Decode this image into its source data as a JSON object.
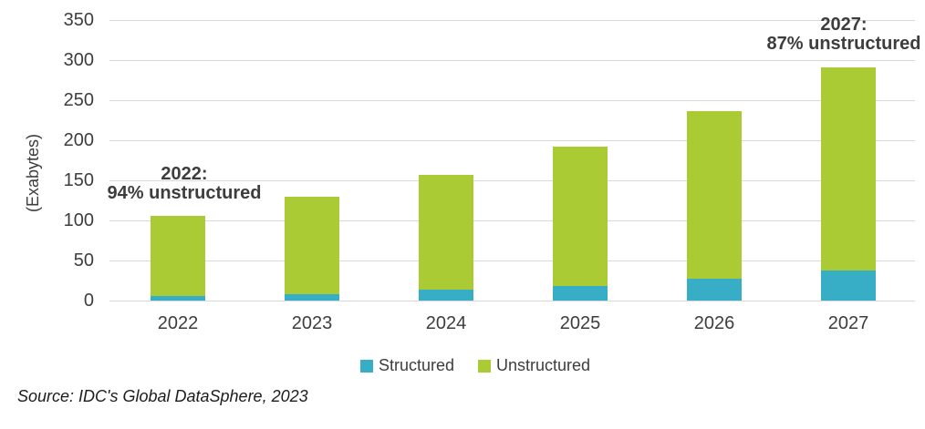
{
  "chart_data": {
    "type": "bar",
    "stacked": true,
    "title": "",
    "xlabel": "",
    "ylabel": "(Exabytes)",
    "categories": [
      "2022",
      "2023",
      "2024",
      "2025",
      "2026",
      "2027"
    ],
    "series": [
      {
        "name": "Structured",
        "color": "#38adc6",
        "values": [
          6,
          8,
          14,
          18,
          27,
          38
        ]
      },
      {
        "name": "Unstructured",
        "color": "#abcb35",
        "values": [
          100,
          121,
          143,
          174,
          209,
          253
        ]
      }
    ],
    "totals": [
      106,
      129,
      157,
      192,
      236,
      291
    ],
    "ylim": [
      0,
      350
    ],
    "yticks": [
      0,
      50,
      100,
      150,
      200,
      250,
      300,
      350
    ],
    "grid": true,
    "legend_position": "bottom",
    "annotations": [
      {
        "lines": [
          "2022:",
          "94% unstructured"
        ],
        "anchor": "2022"
      },
      {
        "lines": [
          "2027:",
          "87% unstructured"
        ],
        "anchor": "2027"
      }
    ]
  },
  "source_note": "Source: IDC's Global DataSphere, 2023",
  "colors": {
    "structured": "#38adc6",
    "unstructured": "#abcb35",
    "text": "#3d3d3d",
    "gridline": "#d9d9d9",
    "source_text": "#1c1c1c",
    "background": "#ffffff"
  }
}
